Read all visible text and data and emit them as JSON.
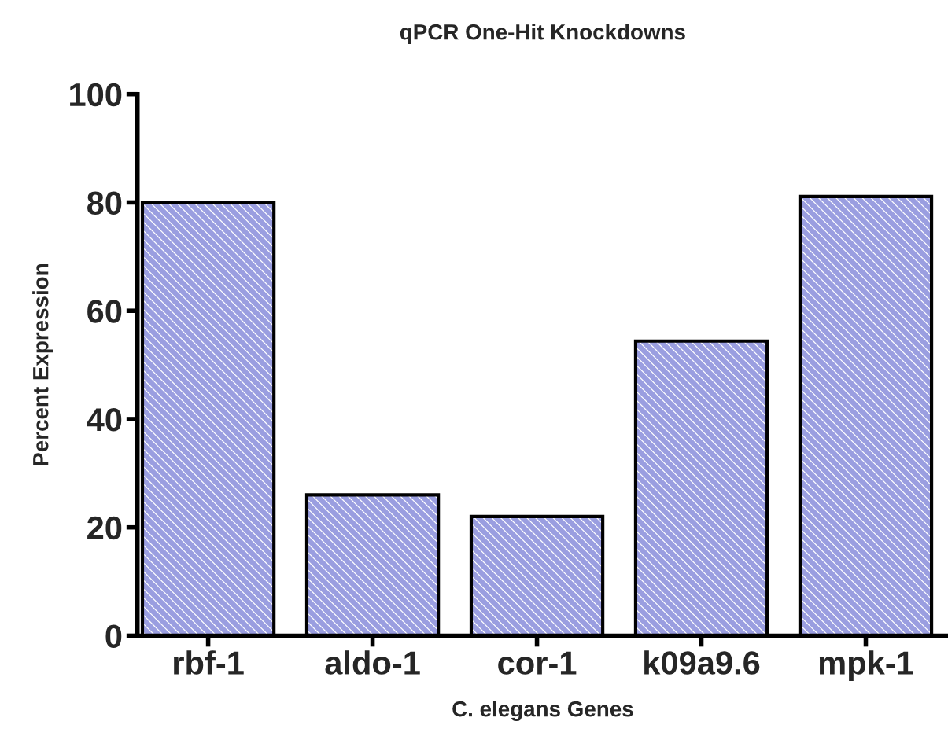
{
  "chart_data": {
    "type": "bar",
    "title": "qPCR One-Hit Knockdowns",
    "xlabel": "C. elegans Genes",
    "ylabel": "Percent Expression",
    "categories": [
      "rbf-1",
      "aldo-1",
      "cor-1",
      "k09a9.6",
      "mpk-1"
    ],
    "values": [
      80,
      26,
      22,
      54.4,
      81.1
    ],
    "color": "#9a9ee0",
    "ylim": [
      0,
      100
    ],
    "yticks": [
      0,
      20,
      40,
      60,
      80,
      100
    ],
    "grid": false,
    "legend": false
  }
}
